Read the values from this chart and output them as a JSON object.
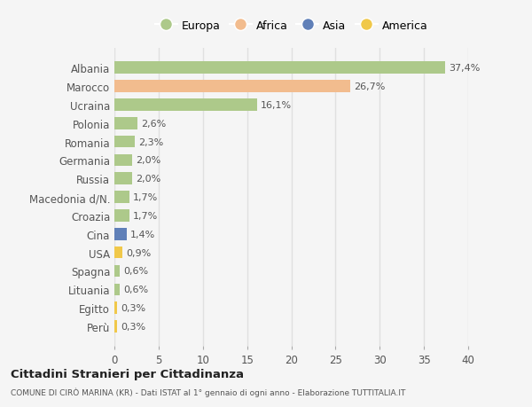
{
  "categories": [
    "Albania",
    "Marocco",
    "Ucraina",
    "Polonia",
    "Romania",
    "Germania",
    "Russia",
    "Macedonia d/N.",
    "Croazia",
    "Cina",
    "USA",
    "Spagna",
    "Lituania",
    "Egitto",
    "Perù"
  ],
  "values": [
    37.4,
    26.7,
    16.1,
    2.6,
    2.3,
    2.0,
    2.0,
    1.7,
    1.7,
    1.4,
    0.9,
    0.6,
    0.6,
    0.3,
    0.3
  ],
  "labels": [
    "37,4%",
    "26,7%",
    "16,1%",
    "2,6%",
    "2,3%",
    "2,0%",
    "2,0%",
    "1,7%",
    "1,7%",
    "1,4%",
    "0,9%",
    "0,6%",
    "0,6%",
    "0,3%",
    "0,3%"
  ],
  "colors": [
    "#adc98a",
    "#f2bc8e",
    "#adc98a",
    "#adc98a",
    "#adc98a",
    "#adc98a",
    "#adc98a",
    "#adc98a",
    "#adc98a",
    "#6080b8",
    "#f0c84a",
    "#adc98a",
    "#adc98a",
    "#f0c84a",
    "#f0c84a"
  ],
  "legend_labels": [
    "Europa",
    "Africa",
    "Asia",
    "America"
  ],
  "legend_colors": [
    "#adc98a",
    "#f2bc8e",
    "#6080b8",
    "#f0c84a"
  ],
  "title": "Cittadini Stranieri per Cittadinanza",
  "subtitle": "COMUNE DI CIRÒ MARINA (KR) - Dati ISTAT al 1° gennaio di ogni anno - Elaborazione TUTTITALIA.IT",
  "xlim": [
    0,
    40
  ],
  "xticks": [
    0,
    5,
    10,
    15,
    20,
    25,
    30,
    35,
    40
  ],
  "bg_color": "#f5f5f5",
  "grid_color": "#e0e0e0",
  "bar_height": 0.65
}
